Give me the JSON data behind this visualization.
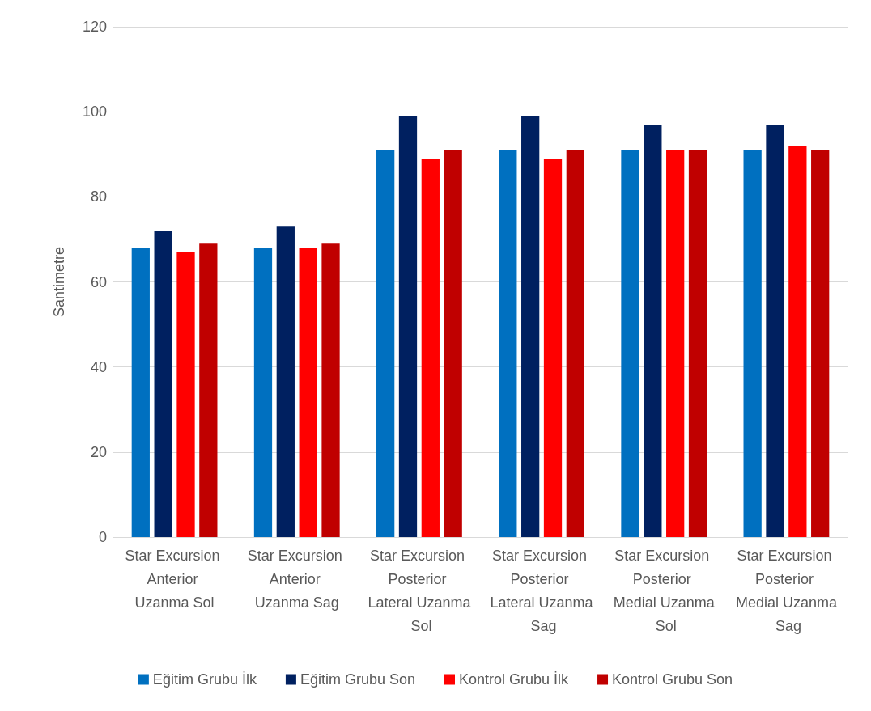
{
  "chart_data": {
    "type": "bar",
    "ylabel": "Santimetre",
    "categories": [
      "Star Excursion Anterior Uzanma Sol",
      "Star Excursion Anterior Uzanma Sag",
      "Star Excursion Posterior Lateral Uzanma Sol",
      "Star Excursion Posterior Lateral Uzanma Sag",
      "Star Excursion Posterior Medial Uzanma Sol",
      "Star Excursion Posterior Medial Uzanma Sag"
    ],
    "series": [
      {
        "name": "Eğitim Grubu İlk",
        "color": "#0070c0",
        "values": [
          68,
          68,
          91,
          91,
          91,
          91
        ]
      },
      {
        "name": "Eğitim Grubu Son",
        "color": "#002060",
        "values": [
          72,
          73,
          99,
          99,
          97,
          97
        ]
      },
      {
        "name": "Kontrol Grubu İlk",
        "color": "#ff0000",
        "values": [
          67,
          68,
          89,
          89,
          91,
          92
        ]
      },
      {
        "name": "Kontrol Grubu Son",
        "color": "#c00000",
        "values": [
          69,
          69,
          91,
          91,
          91,
          91
        ]
      }
    ],
    "ylim": [
      0,
      120
    ],
    "yticks": [
      0,
      20,
      40,
      60,
      80,
      100,
      120
    ],
    "grid": "y",
    "legend": "bottom"
  }
}
